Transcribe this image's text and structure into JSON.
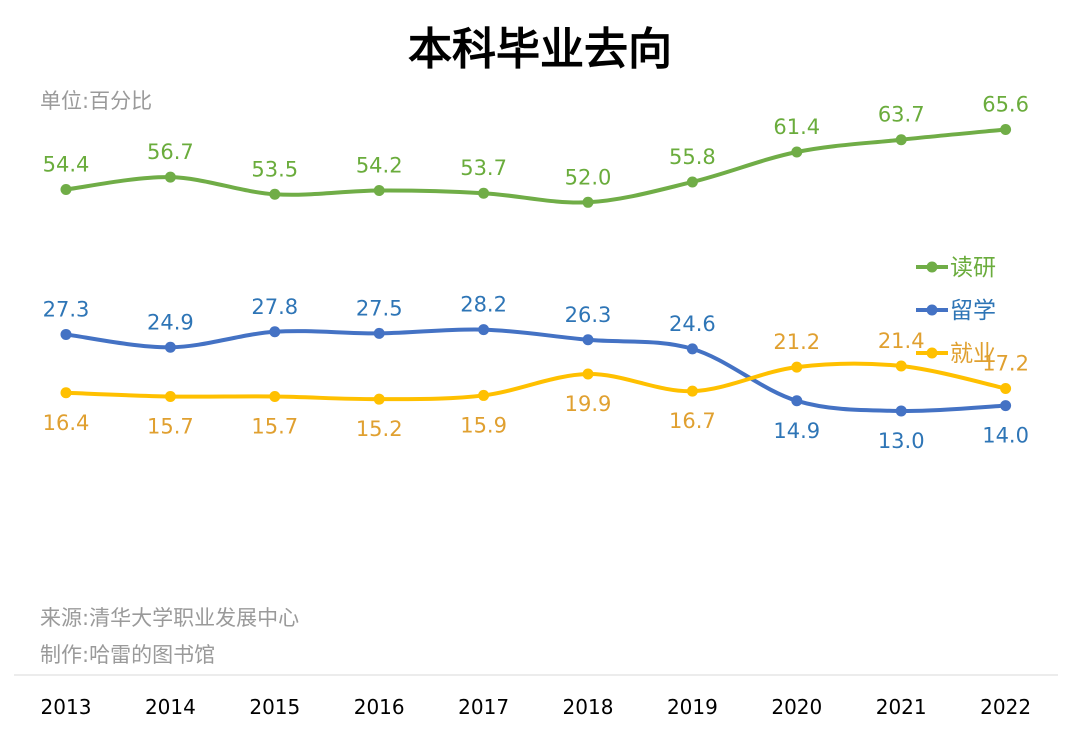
{
  "chart_data": {
    "type": "line",
    "title": "本科毕业去向",
    "unit_note": "单位:百分比",
    "source_note": "来源:清华大学职业发展中心",
    "maker_note": "制作:哈雷的图书馆",
    "categories": [
      "2013",
      "2014",
      "2015",
      "2016",
      "2017",
      "2018",
      "2019",
      "2020",
      "2021",
      "2022"
    ],
    "series": [
      {
        "name": "读研",
        "color": "#70ad47",
        "label_color": "#6aac3c",
        "values": [
          54.4,
          56.7,
          53.5,
          54.2,
          53.7,
          52.0,
          55.8,
          61.4,
          63.7,
          65.6
        ],
        "labels": [
          "54.4",
          "56.7",
          "53.5",
          "54.2",
          "53.7",
          "52.0",
          "55.8",
          "61.4",
          "63.7",
          "65.6"
        ],
        "label_pos": [
          "above",
          "above",
          "above",
          "above",
          "above",
          "above",
          "above",
          "above",
          "above",
          "above"
        ]
      },
      {
        "name": "留学",
        "color": "#4472c4",
        "label_color": "#2e75b6",
        "values": [
          27.3,
          24.9,
          27.8,
          27.5,
          28.2,
          26.3,
          24.6,
          14.9,
          13.0,
          14.0
        ],
        "labels": [
          "27.3",
          "24.9",
          "27.8",
          "27.5",
          "28.2",
          "26.3",
          "24.6",
          "14.9",
          "13.0",
          "14.0"
        ],
        "label_pos": [
          "above",
          "above",
          "above",
          "above",
          "above",
          "above",
          "above",
          "below",
          "below",
          "below"
        ]
      },
      {
        "name": "就业",
        "color": "#ffc000",
        "label_color": "#e0a030",
        "values": [
          16.4,
          15.7,
          15.7,
          15.2,
          15.9,
          19.9,
          16.7,
          21.2,
          21.4,
          17.2
        ],
        "labels": [
          "16.4",
          "15.7",
          "15.7",
          "15.2",
          "15.9",
          "19.9",
          "16.7",
          "21.2",
          "21.4",
          "17.2"
        ],
        "label_pos": [
          "below",
          "below",
          "below",
          "below",
          "below",
          "below",
          "below",
          "above",
          "above",
          "above"
        ]
      }
    ],
    "legend_position": "right",
    "grid": false
  }
}
